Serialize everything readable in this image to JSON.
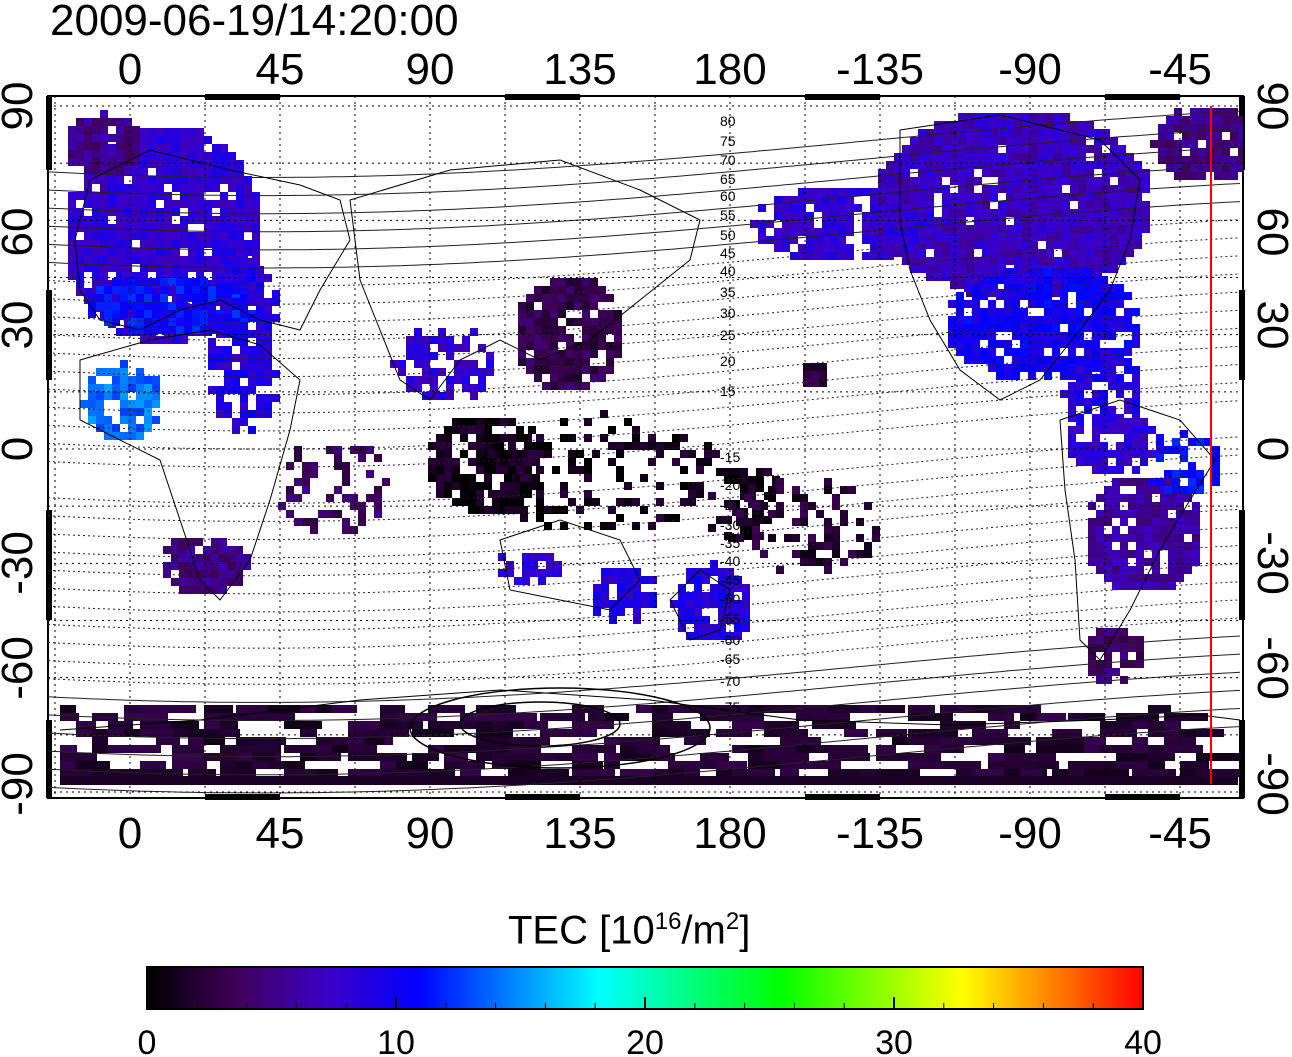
{
  "timestamp": "2009-06-19/14:20:00",
  "colorbar": {
    "title_prefix": "TEC  [10",
    "title_exp1": "16",
    "title_mid": "/m",
    "title_exp2": "2",
    "title_suffix": "]",
    "min": 0,
    "max": 40,
    "ticks": [
      0,
      10,
      20,
      30,
      40
    ],
    "stops": [
      "#000000",
      "#40005a",
      "#3c00c8",
      "#0000ff",
      "#0080ff",
      "#00ffff",
      "#00ff80",
      "#00ff00",
      "#80ff00",
      "#ffff00",
      "#ff8000",
      "#ff0000"
    ]
  },
  "map": {
    "lon_labels": [
      "0",
      "45",
      "90",
      "135",
      "180",
      "-135",
      "-90",
      "-45"
    ],
    "lat_labels": [
      "90",
      "60",
      "30",
      "0",
      "-30",
      "-60",
      "-90"
    ],
    "contour_labels": [
      "80",
      "75",
      "70",
      "65",
      "60",
      "55",
      "50",
      "45",
      "40",
      "35",
      "30",
      "25",
      "20",
      "15",
      "-15",
      "-20",
      "-25",
      "-30",
      "-35",
      "-40",
      "-45",
      "-50",
      "-55",
      "-60",
      "-65",
      "-70",
      "-75"
    ],
    "terminator_color": "#ff0000"
  }
}
